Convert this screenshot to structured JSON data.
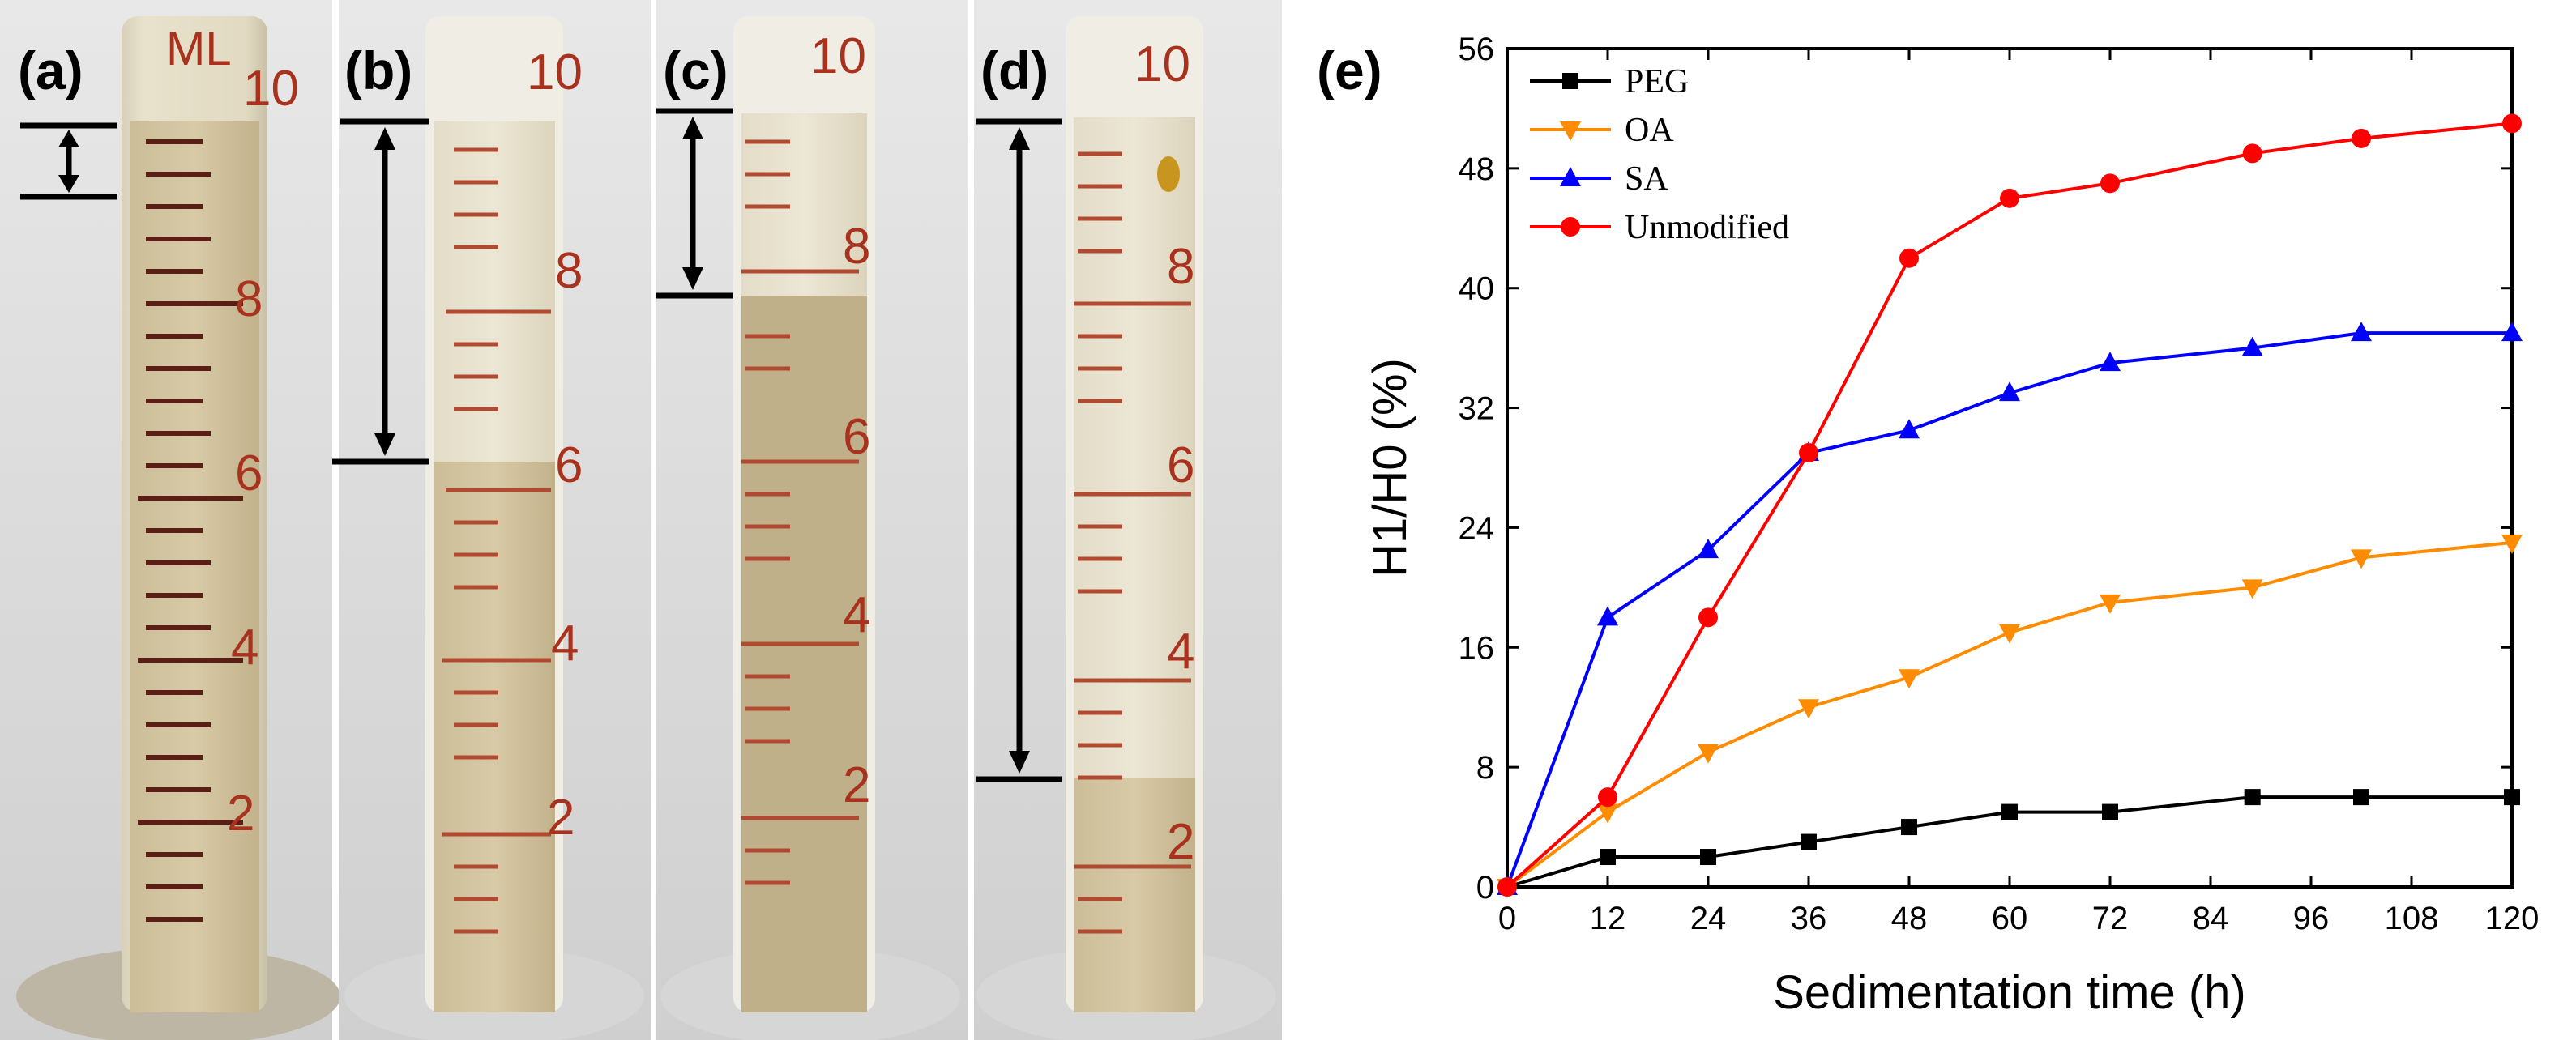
{
  "figure": {
    "photo_panels": [
      {
        "label": "(a)",
        "top_number": "10",
        "ml_mark": "ML",
        "scale_numbers": [
          "8",
          "6",
          "4",
          "2"
        ]
      },
      {
        "label": "(b)",
        "top_number": "10",
        "scale_numbers": [
          "8",
          "6",
          "4",
          "2"
        ]
      },
      {
        "label": "(c)",
        "top_number": "10",
        "scale_numbers": [
          "8",
          "6",
          "4",
          "2"
        ]
      },
      {
        "label": "(d)",
        "top_number": "10",
        "scale_numbers": [
          "8",
          "6",
          "4",
          "2"
        ]
      }
    ],
    "chart_panel_label": "(e)"
  },
  "chart_data": {
    "type": "line",
    "title": "",
    "xlabel": "Sedimentation time (h)",
    "ylabel": "H1/H0 (%)",
    "xlim": [
      0,
      120
    ],
    "ylim": [
      0,
      56
    ],
    "xticks": [
      0,
      12,
      24,
      36,
      48,
      60,
      72,
      84,
      96,
      108,
      120
    ],
    "yticks": [
      0,
      8,
      16,
      24,
      32,
      40,
      48,
      56
    ],
    "x": [
      0,
      12,
      24,
      36,
      48,
      60,
      72,
      89,
      102,
      120
    ],
    "legend_position": "top-left",
    "series": [
      {
        "name": "PEG",
        "color": "#000000",
        "marker": "square",
        "values": [
          0,
          2,
          2,
          3,
          4,
          5,
          5,
          6,
          6,
          6
        ]
      },
      {
        "name": "OA",
        "color": "#ff8c00",
        "marker": "triangle-down",
        "values": [
          0,
          5,
          9,
          12,
          14,
          17,
          19,
          20,
          22,
          23
        ]
      },
      {
        "name": "SA",
        "color": "#0000ff",
        "marker": "triangle-up",
        "values": [
          0,
          18,
          22.5,
          29,
          30.5,
          33,
          35,
          36,
          37,
          37
        ]
      },
      {
        "name": "Unmodified",
        "color": "#ff0000",
        "marker": "circle",
        "values": [
          0,
          6,
          18,
          29,
          42,
          46,
          47,
          49,
          50,
          51
        ]
      }
    ]
  }
}
